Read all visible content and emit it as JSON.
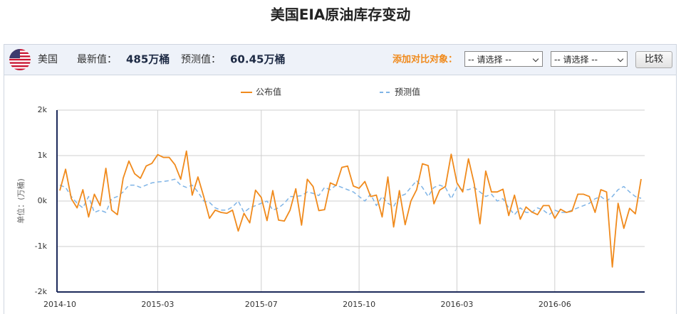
{
  "title": "美国EIA原油库存变动",
  "header": {
    "country": "美国",
    "latest_label": "最新值：",
    "latest_value": "485万桶",
    "forecast_label": "预测值：",
    "forecast_value": "60.45万桶",
    "compare_label": "添加对比对象：",
    "select_1": "-- 请选择 --",
    "select_2": "-- 请选择 --",
    "button": "比较"
  },
  "chart_data": {
    "type": "line",
    "y_label": "单位：(万桶)",
    "categories": [
      "2014-10",
      null,
      null,
      null,
      null,
      null,
      null,
      null,
      null,
      null,
      null,
      null,
      null,
      null,
      null,
      null,
      null,
      "2015-03",
      null,
      null,
      null,
      null,
      null,
      null,
      null,
      null,
      null,
      null,
      null,
      null,
      null,
      null,
      null,
      null,
      null,
      "2015-07",
      null,
      null,
      null,
      null,
      null,
      null,
      null,
      null,
      null,
      null,
      null,
      null,
      null,
      null,
      null,
      null,
      "2015-10",
      null,
      null,
      null,
      null,
      null,
      null,
      null,
      null,
      null,
      null,
      null,
      null,
      null,
      null,
      null,
      null,
      "2016-03",
      null,
      null,
      null,
      null,
      null,
      null,
      null,
      null,
      null,
      null,
      null,
      null,
      null,
      null,
      null,
      null,
      "2016-06",
      null,
      null,
      null,
      null,
      null,
      null,
      null,
      null,
      null,
      null,
      null,
      null,
      null,
      null,
      null
    ],
    "series": [
      {
        "name": "公布值",
        "color": "#f08a1c",
        "dash": false,
        "values": [
          230,
          700,
          50,
          -150,
          250,
          -350,
          150,
          -100,
          720,
          -200,
          -300,
          500,
          880,
          600,
          500,
          770,
          830,
          1020,
          960,
          960,
          800,
          480,
          1100,
          130,
          530,
          100,
          -380,
          -200,
          -250,
          -270,
          -200,
          -660,
          -270,
          -480,
          240,
          80,
          -430,
          230,
          -420,
          -440,
          -200,
          270,
          -530,
          480,
          320,
          -210,
          -190,
          400,
          340,
          740,
          770,
          330,
          280,
          430,
          100,
          130,
          -350,
          530,
          -570,
          230,
          -520,
          0,
          250,
          820,
          780,
          -60,
          240,
          320,
          1030,
          400,
          200,
          930,
          380,
          -500,
          660,
          200,
          200,
          260,
          -320,
          130,
          -400,
          -130,
          -240,
          -300,
          -100,
          -100,
          -380,
          -180,
          -250,
          -220,
          150,
          150,
          100,
          -250,
          250,
          200,
          -1450,
          -50,
          -600,
          -160,
          -280,
          485
        ]
      },
      {
        "name": "预测值",
        "color": "#7fb4e6",
        "dash": true,
        "values": [
          350,
          300,
          100,
          -50,
          -150,
          100,
          -250,
          -200,
          -250,
          50,
          100,
          200,
          350,
          350,
          300,
          350,
          400,
          420,
          430,
          450,
          480,
          350,
          300,
          350,
          200,
          0,
          -30,
          -150,
          -200,
          -200,
          -130,
          0,
          -250,
          -150,
          -100,
          -50,
          0,
          -200,
          -150,
          -50,
          100,
          100,
          120,
          200,
          170,
          120,
          300,
          250,
          350,
          300,
          250,
          200,
          100,
          0,
          150,
          -100,
          100,
          -50,
          -120,
          100,
          150,
          300,
          450,
          300,
          100,
          300,
          350,
          300,
          50,
          300,
          250,
          250,
          300,
          200,
          100,
          150,
          0,
          50,
          -150,
          -300,
          -150,
          -250,
          -250,
          -150,
          -200,
          -300,
          -200,
          -250,
          -250,
          -200,
          -150,
          -100,
          -50,
          50,
          100,
          0,
          100,
          250,
          320,
          200,
          100,
          60.45
        ]
      }
    ],
    "ylim": [
      -2000,
      2000
    ],
    "yticks": [
      {
        "value": -2000,
        "label": "-2k"
      },
      {
        "value": -1000,
        "label": "-1k"
      },
      {
        "value": 0,
        "label": "0k"
      },
      {
        "value": 1000,
        "label": "1k"
      },
      {
        "value": 2000,
        "label": "2k"
      }
    ],
    "grid": true
  }
}
